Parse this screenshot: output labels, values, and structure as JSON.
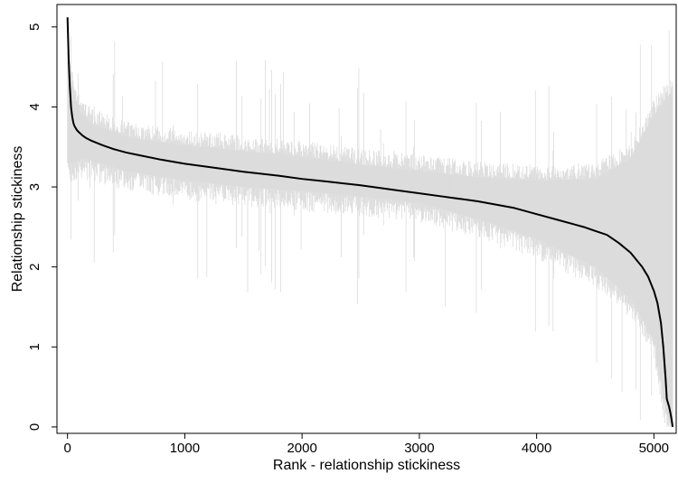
{
  "chart_data": {
    "type": "line",
    "title": "",
    "xlabel": "Rank - relationship stickiness",
    "ylabel": "Relationship stickiness",
    "xlim": [
      -90,
      5190
    ],
    "ylim": [
      -0.08,
      5.28
    ],
    "xticks": [
      0,
      1000,
      2000,
      3000,
      4000,
      5000
    ],
    "xtick_labels": [
      "0",
      "1000",
      "2000",
      "3000",
      "4000",
      "5000"
    ],
    "yticks": [
      0,
      1,
      2,
      3,
      4,
      5
    ],
    "ytick_labels": [
      "0",
      "1",
      "2",
      "3",
      "4",
      "5"
    ],
    "grid": false,
    "legend": "none",
    "series": [
      {
        "role": "point-estimate",
        "color": "#000000",
        "x": [
          0,
          10,
          20,
          30,
          40,
          50,
          60,
          80,
          100,
          130,
          160,
          200,
          250,
          300,
          400,
          500,
          600,
          800,
          1000,
          1200,
          1500,
          1800,
          2000,
          2200,
          2500,
          2800,
          3000,
          3200,
          3500,
          3800,
          4000,
          4200,
          4400,
          4500,
          4600,
          4700,
          4800,
          4900,
          4950,
          5000,
          5030,
          5060,
          5080,
          5100,
          5110,
          5120,
          5130,
          5140,
          5150,
          5160
        ],
        "y": [
          5.12,
          4.6,
          4.25,
          4.0,
          3.88,
          3.8,
          3.76,
          3.71,
          3.68,
          3.64,
          3.61,
          3.58,
          3.55,
          3.52,
          3.47,
          3.43,
          3.4,
          3.34,
          3.29,
          3.25,
          3.19,
          3.14,
          3.1,
          3.07,
          3.02,
          2.96,
          2.92,
          2.88,
          2.82,
          2.74,
          2.66,
          2.58,
          2.5,
          2.45,
          2.4,
          2.3,
          2.18,
          2.0,
          1.88,
          1.7,
          1.55,
          1.3,
          1.0,
          0.6,
          0.35,
          0.3,
          0.25,
          0.18,
          0.1,
          0.0
        ]
      },
      {
        "role": "confidence-band",
        "color": "#dcdcdc",
        "x": [
          0,
          50,
          100,
          200,
          500,
          1000,
          1500,
          2000,
          2500,
          3000,
          3500,
          4000,
          4500,
          4800,
          5000,
          5100,
          5160
        ],
        "lower": [
          3.3,
          3.3,
          3.35,
          3.33,
          3.2,
          3.08,
          3.0,
          2.95,
          2.88,
          2.8,
          2.6,
          2.35,
          2.0,
          1.6,
          1.1,
          0.2,
          0.0
        ],
        "upper": [
          4.5,
          4.2,
          3.95,
          3.8,
          3.62,
          3.52,
          3.45,
          3.38,
          3.28,
          3.2,
          3.12,
          3.08,
          3.1,
          3.35,
          3.9,
          4.1,
          4.2
        ]
      }
    ]
  }
}
